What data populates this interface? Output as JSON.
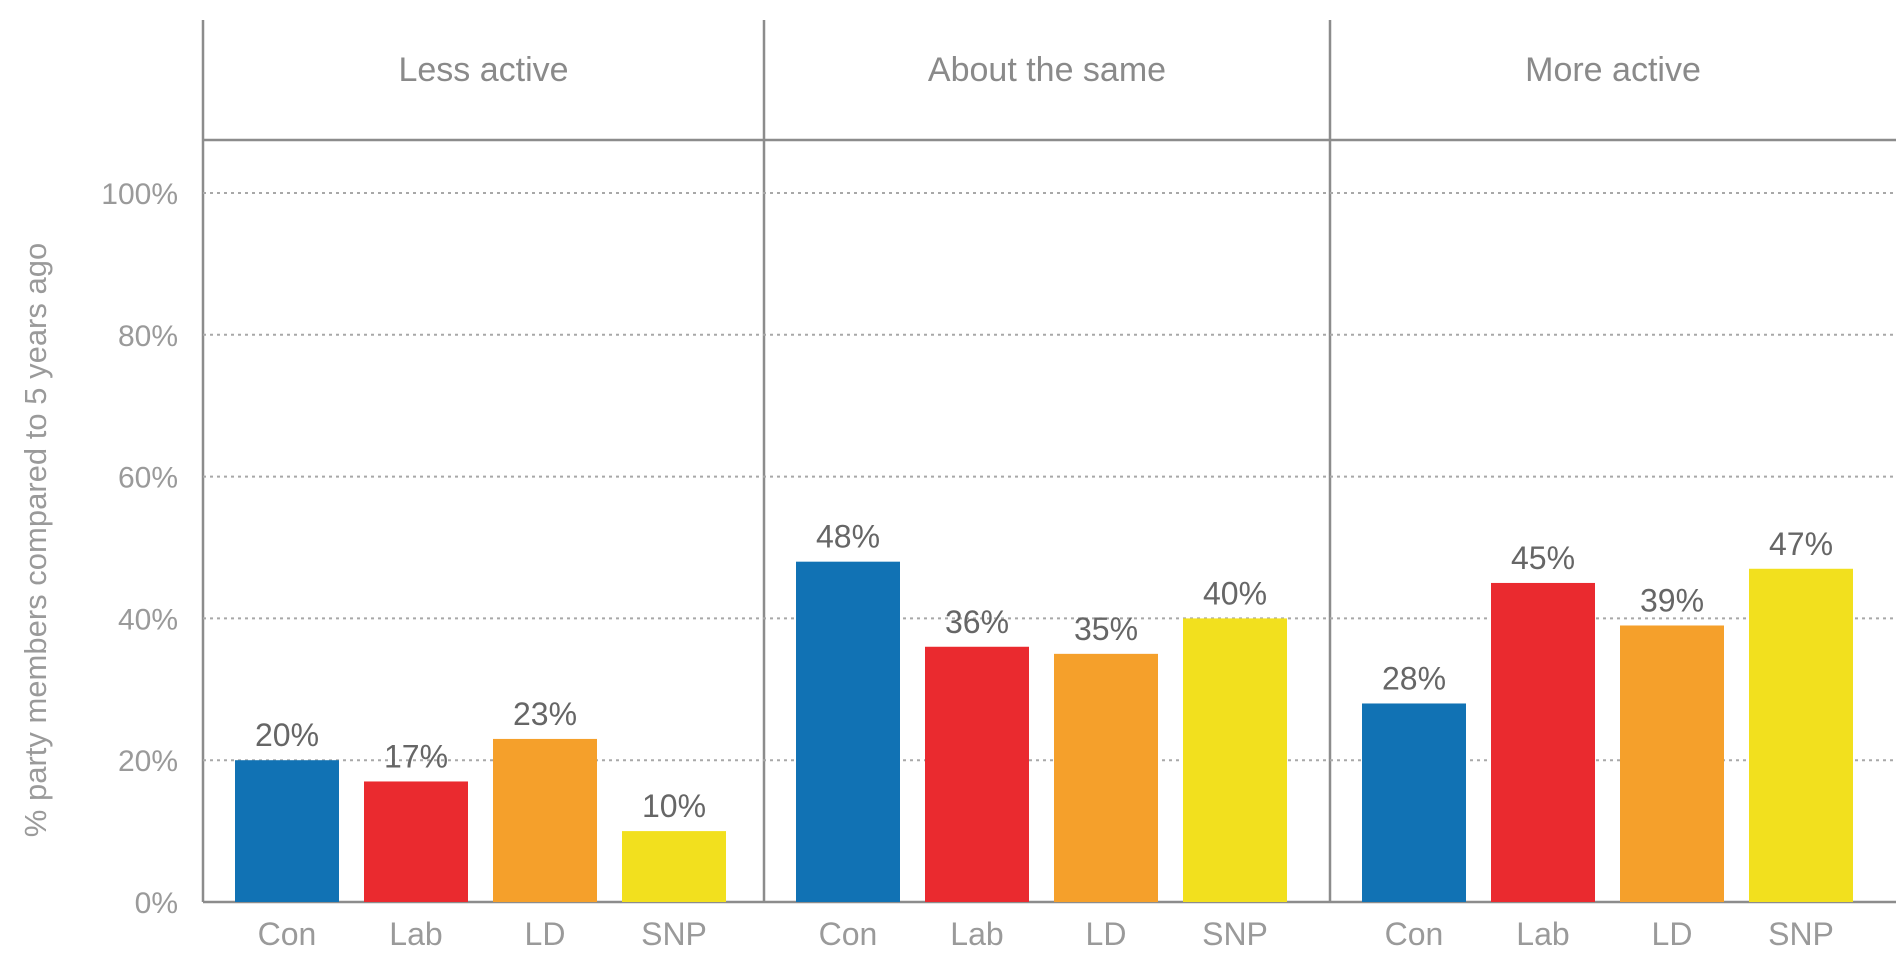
{
  "chart_data": {
    "type": "bar",
    "ylabel": "% party members compared to 5 years ago",
    "ylim": [
      0,
      100
    ],
    "y_ticks": [
      0,
      20,
      40,
      60,
      80,
      100
    ],
    "y_tick_labels": [
      "0%",
      "20%",
      "40%",
      "60%",
      "80%",
      "100%"
    ],
    "grid": true,
    "categories": [
      "Con",
      "Lab",
      "LD",
      "SNP"
    ],
    "category_colors": [
      "#1172b4",
      "#ea2a2f",
      "#f5a02b",
      "#f2e01e"
    ],
    "panels": [
      {
        "title": "Less active",
        "values": [
          20,
          17,
          23,
          10
        ],
        "labels": [
          "20%",
          "17%",
          "23%",
          "10%"
        ]
      },
      {
        "title": "About the same",
        "values": [
          48,
          36,
          35,
          40
        ],
        "labels": [
          "48%",
          "36%",
          "35%",
          "40%"
        ]
      },
      {
        "title": "More active",
        "values": [
          28,
          45,
          39,
          47
        ],
        "labels": [
          "28%",
          "45%",
          "39%",
          "47%"
        ]
      }
    ]
  }
}
